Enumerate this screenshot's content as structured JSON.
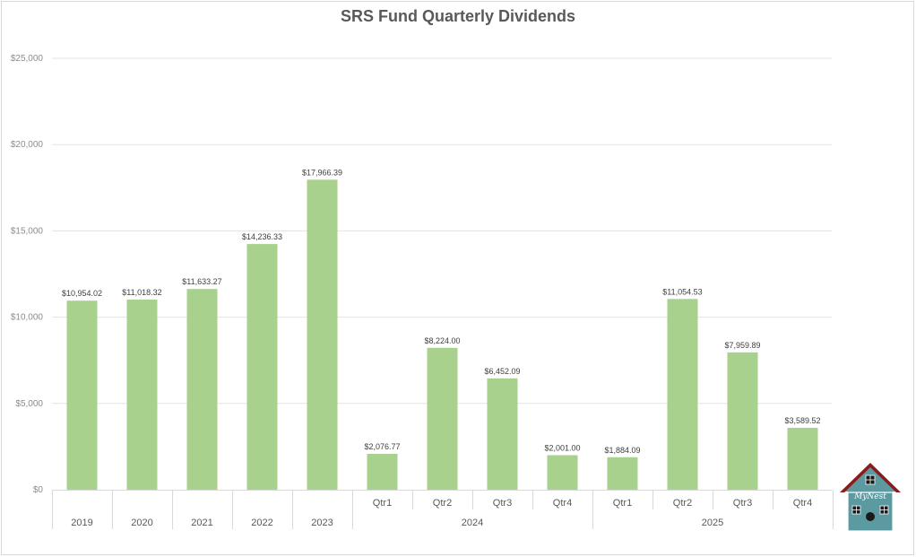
{
  "chart_data": {
    "type": "bar",
    "title": "SRS Fund Quarterly Dividends",
    "xlabel": "",
    "ylabel": "",
    "ylim": [
      0,
      25000
    ],
    "yticks": [
      "$0",
      "$5,000",
      "$10,000",
      "$15,000",
      "$20,000",
      "$25,000"
    ],
    "ytick_values": [
      0,
      5000,
      10000,
      15000,
      20000,
      25000
    ],
    "grid": true,
    "bar_color": "#a9d18e",
    "categories": [
      {
        "label": "2019",
        "group": ""
      },
      {
        "label": "2020",
        "group": ""
      },
      {
        "label": "2021",
        "group": ""
      },
      {
        "label": "2022",
        "group": ""
      },
      {
        "label": "2023",
        "group": ""
      },
      {
        "label": "Qtr1",
        "group": "2024"
      },
      {
        "label": "Qtr2",
        "group": "2024"
      },
      {
        "label": "Qtr3",
        "group": "2024"
      },
      {
        "label": "Qtr4",
        "group": "2024"
      },
      {
        "label": "Qtr1",
        "group": "2025"
      },
      {
        "label": "Qtr2",
        "group": "2025"
      },
      {
        "label": "Qtr3",
        "group": "2025"
      },
      {
        "label": "Qtr4",
        "group": "2025"
      }
    ],
    "values": [
      10954.02,
      11018.32,
      11633.27,
      14236.33,
      17966.39,
      2076.77,
      8224.0,
      6452.09,
      2001.0,
      1884.09,
      11054.53,
      7959.89,
      3589.52
    ],
    "data_labels": [
      "$10,954.02",
      "$11,018.32",
      "$11,633.27",
      "$14,236.33",
      "$17,966.39",
      "$2,076.77",
      "$8,224.00",
      "$6,452.09",
      "$2,001.00",
      "$1,884.09",
      "$11,054.53",
      "$7,959.89",
      "$3,589.52"
    ],
    "groups": [
      "2024",
      "2025"
    ]
  },
  "logo": {
    "name": "house-logo",
    "text": "MyNest",
    "roof_color": "#8b1a1a",
    "wall_color": "#5b9aa0"
  }
}
